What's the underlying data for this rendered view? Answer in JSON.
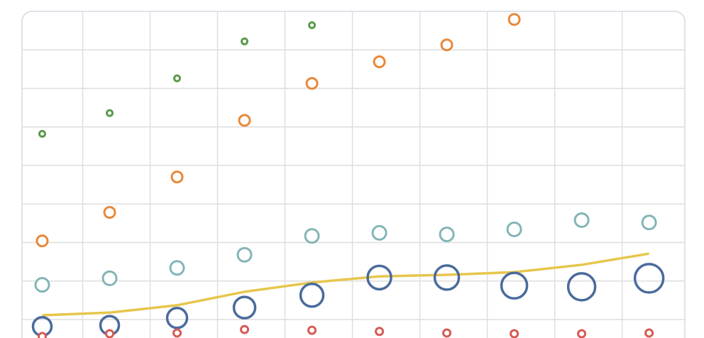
{
  "chart_data": {
    "type": "scatter",
    "x": [
      0,
      1,
      2,
      3,
      4,
      5,
      6,
      7,
      8,
      9
    ],
    "xlim": [
      -0.3,
      9.53
    ],
    "ylim": [
      -0.48,
      8
    ],
    "xticks": [
      0.6,
      1.6,
      2.6,
      3.6,
      4.6,
      5.6,
      6.6,
      7.6,
      8.6
    ],
    "yticks": [
      0,
      1,
      2,
      3,
      4,
      5,
      6,
      7
    ],
    "grid": true,
    "series": [
      {
        "type": "scatter",
        "color": "#5b9a4b",
        "size": 4,
        "values": [
          4.82,
          5.36,
          6.26,
          7.22,
          7.64,
          null,
          null,
          null,
          null,
          null
        ]
      },
      {
        "type": "scatter",
        "color": "#e8883a",
        "size": 7.5,
        "values": [
          2.04,
          2.78,
          3.7,
          5.17,
          6.13,
          6.69,
          7.13,
          7.79,
          null,
          null
        ]
      },
      {
        "type": "scatter",
        "color": "#84b5b6",
        "size": 9.5,
        "values": [
          0.9,
          1.07,
          1.34,
          1.68,
          2.17,
          2.25,
          2.21,
          2.34,
          2.58,
          2.52
        ]
      },
      {
        "type": "line",
        "color": "#e6c64c",
        "values": [
          0.11,
          0.18,
          0.37,
          0.72,
          0.96,
          1.12,
          1.16,
          1.23,
          1.42,
          1.71
        ]
      },
      {
        "type": "bubble",
        "color": "#4a6b9c",
        "values": [
          -0.18,
          -0.15,
          0.04,
          0.31,
          0.63,
          1.09,
          1.09,
          0.88,
          0.85,
          1.07
        ],
        "sizes": [
          13,
          13,
          14,
          15,
          16,
          16.5,
          17,
          18,
          19,
          20
        ]
      },
      {
        "type": "scatter",
        "color": "#d65a52",
        "size": 5,
        "values": [
          -0.44,
          -0.37,
          -0.35,
          -0.26,
          -0.28,
          -0.31,
          -0.35,
          -0.37,
          -0.37,
          -0.35
        ]
      }
    ]
  }
}
